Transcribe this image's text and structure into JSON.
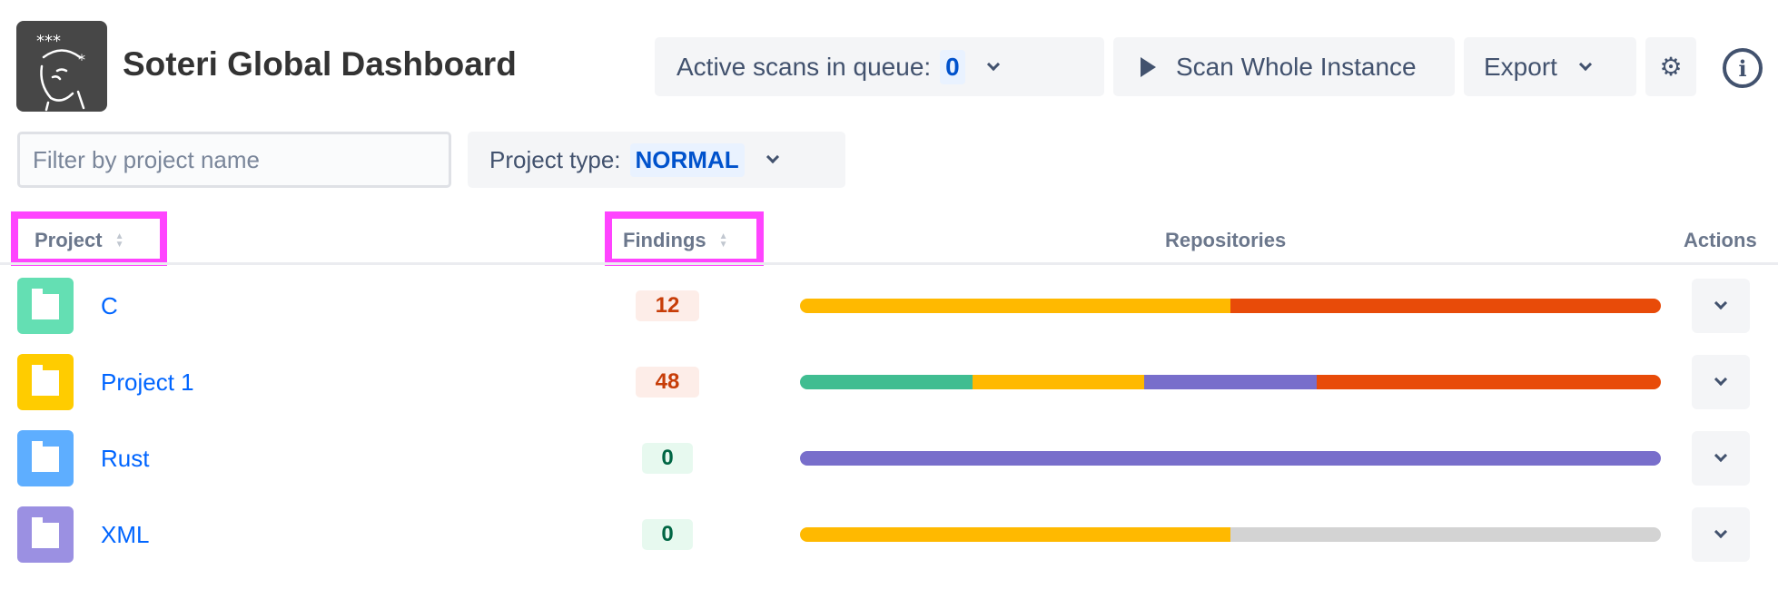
{
  "header": {
    "title": "Soteri Global Dashboard",
    "logo": "soteri-logo"
  },
  "toolbar": {
    "active_scans_label": "Active scans in queue:",
    "active_scans_count": "0",
    "scan_label": "Scan Whole Instance",
    "export_label": "Export"
  },
  "filters": {
    "search_placeholder": "Filter by project name",
    "project_type_label": "Project type:",
    "project_type_value": "NORMAL"
  },
  "table": {
    "columns": [
      "Project",
      "Findings",
      "Repositories",
      "Actions"
    ],
    "rows": [
      {
        "name": "C",
        "findings": "12",
        "findings_status": "bad",
        "icon_color": "#64dfb3",
        "repos": [
          {
            "color": "#ffb900",
            "share": 50
          },
          {
            "color": "#e84b09",
            "share": 50
          }
        ]
      },
      {
        "name": "Project 1",
        "findings": "48",
        "findings_status": "bad",
        "icon_color": "#ffcc00",
        "repos": [
          {
            "color": "#40bd91",
            "share": 20
          },
          {
            "color": "#ffb900",
            "share": 20
          },
          {
            "color": "#786ecb",
            "share": 20
          },
          {
            "color": "#e84b09",
            "share": 40
          }
        ]
      },
      {
        "name": "Rust",
        "findings": "0",
        "findings_status": "good",
        "icon_color": "#5eaeff",
        "repos": [
          {
            "color": "#786ecb",
            "share": 100
          }
        ]
      },
      {
        "name": "XML",
        "findings": "0",
        "findings_status": "good",
        "icon_color": "#9b90e2",
        "repos": [
          {
            "color": "#ffb900",
            "share": 50
          },
          {
            "color": "#d3d3d3",
            "share": 50
          }
        ]
      }
    ]
  },
  "colors": {
    "link": "#0065ff",
    "bad_bg": "#fdede8",
    "bad_fg": "#c73d08",
    "good_bg": "#e7f9ef",
    "good_fg": "#006644",
    "highlight": "#ff44ff"
  }
}
